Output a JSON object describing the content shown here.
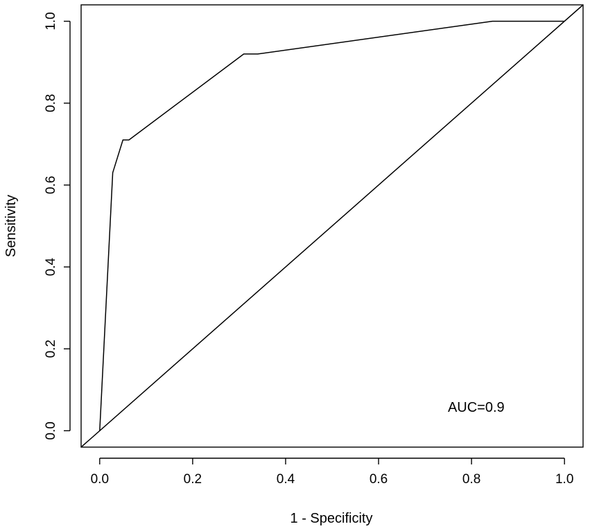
{
  "chart_data": {
    "type": "line",
    "title": "",
    "xlabel": "1 - Specificity",
    "ylabel": "Sensitivity",
    "xlim": [
      -0.04,
      1.04
    ],
    "ylim": [
      -0.04,
      1.04
    ],
    "x_ticks": [
      0.0,
      0.2,
      0.4,
      0.6,
      0.8,
      1.0
    ],
    "x_tick_labels": [
      "0.0",
      "0.2",
      "0.4",
      "0.6",
      "0.8",
      "1.0"
    ],
    "y_ticks": [
      0.0,
      0.2,
      0.4,
      0.6,
      0.8,
      1.0
    ],
    "y_tick_labels": [
      "0.0",
      "0.2",
      "0.4",
      "0.6",
      "0.8",
      "1.0"
    ],
    "grid": false,
    "legend": "none",
    "series": [
      {
        "x": [
          0.0,
          0.028,
          0.05,
          0.063,
          0.31,
          0.34,
          0.845,
          1.0
        ],
        "y": [
          0.0,
          0.63,
          0.71,
          0.71,
          0.92,
          0.92,
          1.0,
          1.0
        ]
      },
      {
        "x": [
          -0.04,
          1.04
        ],
        "y": [
          -0.04,
          1.04
        ]
      }
    ],
    "annotations": [
      {
        "text": "AUC=0.9",
        "x": 0.81,
        "y": 0.055
      }
    ],
    "line_color": "#000000"
  }
}
